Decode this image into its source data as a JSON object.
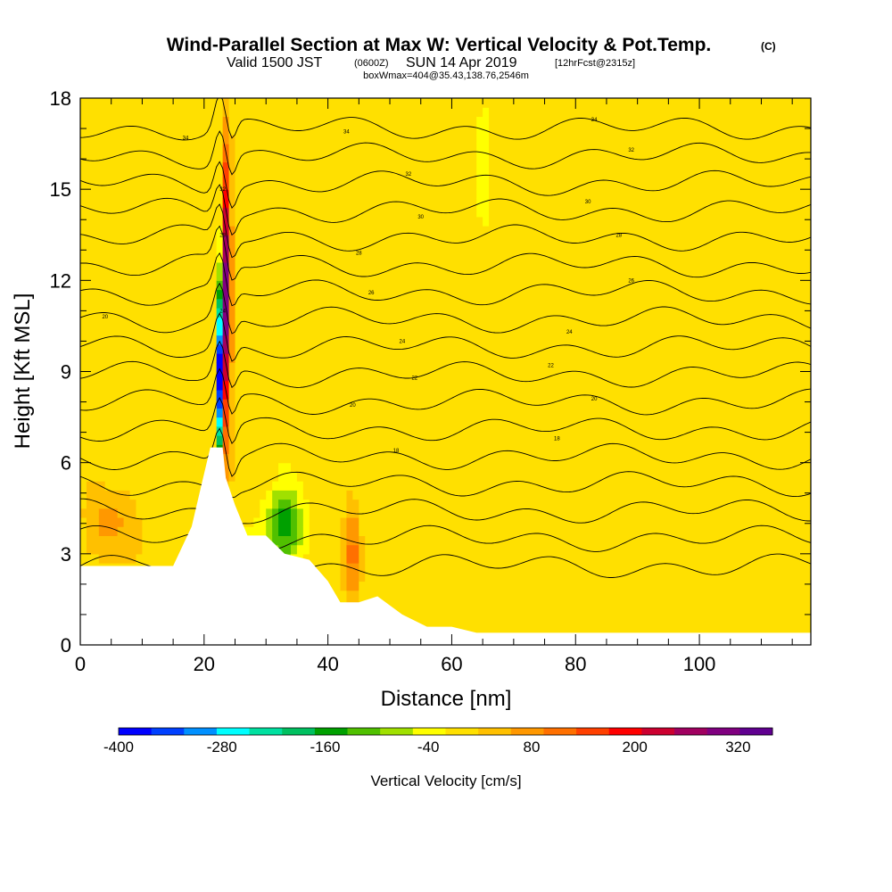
{
  "chart_data": {
    "type": "heatmap",
    "title": "Wind-Parallel Section at Max W: Vertical Velocity & Pot.Temp.",
    "title_mark": "(C)",
    "subtitle_main": "Valid 1500 JST",
    "subtitle_utc": "(0600Z)",
    "subtitle_date": "SUN 14 Apr 2019",
    "subtitle_fcst": "[12hrFcst@2315z]",
    "subtitle2": "boxWmax=404@35.43,138.76,2546m",
    "xlabel": "Distance [nm]",
    "ylabel": "Height [Kft MSL]",
    "xlim": [
      0,
      118
    ],
    "ylim": [
      0,
      18
    ],
    "x_ticks": [
      "0",
      "20",
      "40",
      "60",
      "80",
      "100"
    ],
    "y_ticks": [
      "0",
      "3",
      "6",
      "9",
      "12",
      "15",
      "18"
    ],
    "colorbar": {
      "label": "Vertical Velocity [cm/s]",
      "tick_labels": [
        "-400",
        "-280",
        "-160",
        "-40",
        "80",
        "200",
        "320"
      ],
      "tick_values": [
        -400,
        -280,
        -160,
        -40,
        80,
        200,
        320
      ],
      "range": [
        -400,
        360
      ],
      "colors": [
        "#0000ff",
        "#0040ff",
        "#0090ff",
        "#00ffff",
        "#00e0a0",
        "#00c060",
        "#00a000",
        "#50c000",
        "#a0e000",
        "#ffff00",
        "#ffe000",
        "#ffc000",
        "#ff9800",
        "#ff7000",
        "#ff4000",
        "#ff0000",
        "#cc0030",
        "#a00060",
        "#800080",
        "#600090"
      ]
    },
    "terrain": [
      [
        0,
        2.6
      ],
      [
        15,
        2.6
      ],
      [
        18,
        3.9
      ],
      [
        19.5,
        5.2
      ],
      [
        21,
        6.5
      ],
      [
        23,
        6.5
      ],
      [
        23.5,
        5.5
      ],
      [
        25,
        4.6
      ],
      [
        27,
        3.6
      ],
      [
        30,
        3.6
      ],
      [
        33,
        3.0
      ],
      [
        37,
        2.8
      ],
      [
        40,
        2.1
      ],
      [
        42,
        1.4
      ],
      [
        45,
        1.4
      ],
      [
        48,
        1.6
      ],
      [
        52,
        1.0
      ],
      [
        56,
        0.6
      ],
      [
        60,
        0.6
      ],
      [
        64,
        0.4
      ],
      [
        70,
        0.4
      ],
      [
        118,
        0.4
      ]
    ],
    "w_features": [
      {
        "x": 23.8,
        "y": 11.5,
        "value": 400
      },
      {
        "x": 22.4,
        "y": 9.0,
        "value": -400
      },
      {
        "x": 33,
        "y": 4.0,
        "value": -150
      },
      {
        "x": 65,
        "y": 15.5,
        "value": -70
      },
      {
        "x": 44,
        "y": 3.0,
        "value": 100
      },
      {
        "x": 5,
        "y": 4.0,
        "value": 70
      }
    ],
    "theta_contours": {
      "base_height": 2.6,
      "spacing": 0.9,
      "count": 17,
      "labels": [
        {
          "text": "34",
          "x": 17,
          "y": 16.7
        },
        {
          "text": "34",
          "x": 43,
          "y": 16.9
        },
        {
          "text": "34",
          "x": 83,
          "y": 17.3
        },
        {
          "text": "32",
          "x": 23,
          "y": 15.0
        },
        {
          "text": "32",
          "x": 53,
          "y": 15.5
        },
        {
          "text": "32",
          "x": 89,
          "y": 16.3
        },
        {
          "text": "30",
          "x": 55,
          "y": 14.1
        },
        {
          "text": "30",
          "x": 82,
          "y": 14.6
        },
        {
          "text": "28",
          "x": 23,
          "y": 13.5
        },
        {
          "text": "28",
          "x": 45,
          "y": 12.9
        },
        {
          "text": "28",
          "x": 87,
          "y": 13.5
        },
        {
          "text": "26",
          "x": 47,
          "y": 11.6
        },
        {
          "text": "26",
          "x": 89,
          "y": 12.0
        },
        {
          "text": "24",
          "x": 23,
          "y": 11.0
        },
        {
          "text": "24",
          "x": 52,
          "y": 10.0
        },
        {
          "text": "24",
          "x": 79,
          "y": 10.3
        },
        {
          "text": "22",
          "x": 54,
          "y": 8.8
        },
        {
          "text": "22",
          "x": 76,
          "y": 9.2
        },
        {
          "text": "20",
          "x": 4,
          "y": 10.8
        },
        {
          "text": "20",
          "x": 44,
          "y": 7.9
        },
        {
          "text": "20",
          "x": 83,
          "y": 8.1
        },
        {
          "text": "18",
          "x": 51,
          "y": 6.4
        },
        {
          "text": "18",
          "x": 77,
          "y": 6.8
        }
      ]
    },
    "grid": false,
    "legend": "bottom colorbar"
  }
}
